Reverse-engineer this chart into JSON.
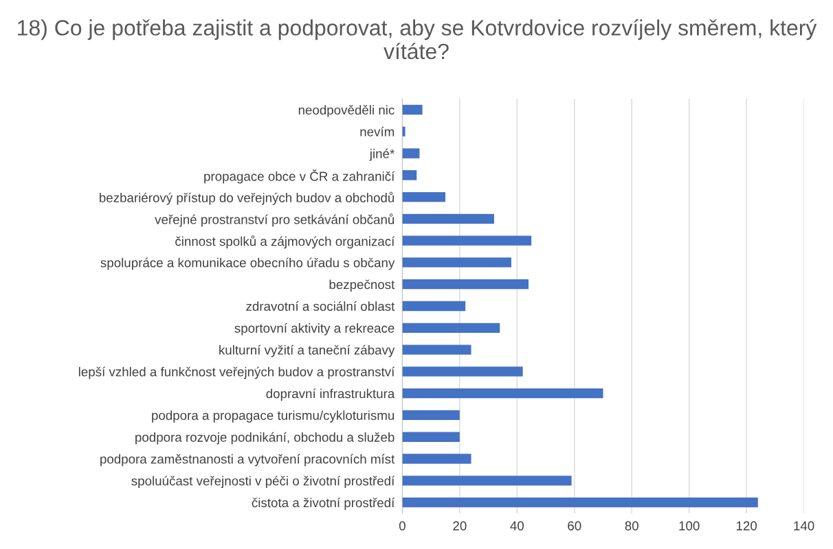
{
  "chart_data": {
    "type": "bar",
    "orientation": "horizontal",
    "title": "18) Co je potřeba zajistit a podporovat, aby se Kotvrdovice rozvíjely směrem, který vítáte?",
    "categories": [
      "neodpověděli nic",
      "nevím",
      "jiné*",
      "propagace obce v ČR a zahraničí",
      "bezbariérový přístup do veřejných budov a obchodů",
      "veřejné prostranství pro setkávání občanů",
      "činnost spolků a zájmových organizací",
      "spolupráce a komunikace obecního úřadu s občany",
      "bezpečnost",
      "zdravotní a sociální oblast",
      "sportovní aktivity a rekreace",
      "kulturní vyžití a taneční zábavy",
      "lepší vzhled a funkčnost veřejných budov a prostranství",
      "dopravní infrastruktura",
      "podpora a propagace turismu/cykloturismu",
      "podpora rozvoje podnikání, obchodu a služeb",
      "podpora zaměstnanosti a vytvoření pracovních míst",
      "spoluúčast veřejnosti v péči o životní prostředí",
      "čistota a životní prostředí"
    ],
    "values": [
      7,
      1,
      6,
      5,
      15,
      32,
      45,
      38,
      44,
      22,
      34,
      24,
      42,
      70,
      20,
      20,
      24,
      59,
      124
    ],
    "color": "#4472c4",
    "xlim": [
      0,
      140
    ],
    "xticks": [
      0,
      20,
      40,
      60,
      80,
      100,
      120,
      140
    ],
    "grid": "x"
  }
}
